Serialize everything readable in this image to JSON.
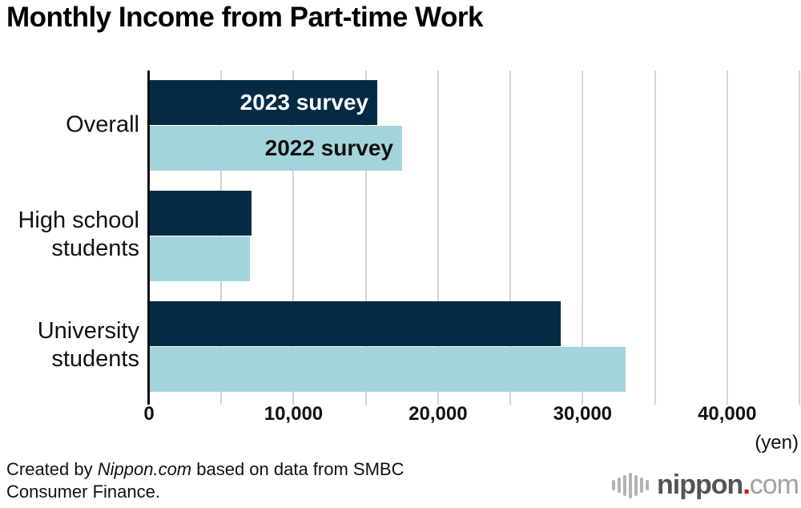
{
  "chart_data": {
    "type": "bar",
    "orientation": "horizontal",
    "title": "Monthly Income from Part-time Work",
    "unit_label": "(yen)",
    "categories": [
      "Overall",
      "High school\nstudents",
      "University\nstudents"
    ],
    "series": [
      {
        "name": "2023 survey",
        "color": "#052a45",
        "label_color": "#ffffff",
        "values": [
          15800,
          7100,
          28500
        ]
      },
      {
        "name": "2022 survey",
        "color": "#a4d4db",
        "label_color": "#111111",
        "values": [
          17500,
          7000,
          33000
        ]
      }
    ],
    "xlim": [
      0,
      45000
    ],
    "gridline_interval": 5000,
    "grid": true,
    "legend_position": "inside-first-group-bars",
    "ticks": {
      "values": [
        0,
        10000,
        20000,
        30000,
        40000
      ],
      "labels": [
        "0",
        "10,000",
        "20,000",
        "30,000",
        "40,000"
      ]
    }
  },
  "footer": {
    "credit_pre": "Created by ",
    "credit_source": "Nippon.com",
    "credit_rest": " based on data from SMBC Consumer Finance."
  },
  "logo": {
    "brand": "nippon",
    "dot": ".",
    "tld": "com",
    "dot_color": "#e60012",
    "icon": "soundwave-icon"
  }
}
